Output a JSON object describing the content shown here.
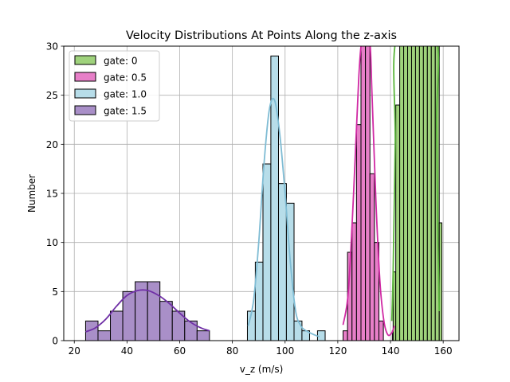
{
  "chart_data": {
    "type": "histogram",
    "title": "Velocity Distributions At Points Along the z-axis",
    "xlabel": "v_z (m/s)",
    "ylabel": "Number",
    "xlim": [
      16,
      166
    ],
    "ylim": [
      0,
      30
    ],
    "xticks": [
      20,
      40,
      60,
      80,
      100,
      120,
      140,
      160
    ],
    "yticks": [
      0,
      5,
      10,
      15,
      20,
      25,
      30
    ],
    "grid": true,
    "legend_position": "top-left",
    "series": [
      {
        "name": "gate: 0",
        "fill": "#9fd27c",
        "line": "#5ab53c",
        "bins": [
          {
            "x0": 141,
            "x1": 142,
            "y": 7
          },
          {
            "x0": 142,
            "x1": 143.5,
            "y": 24
          },
          {
            "x0": 143.5,
            "x1": 145,
            "y": 30
          },
          {
            "x0": 145,
            "x1": 146.5,
            "y": 30
          },
          {
            "x0": 146.5,
            "x1": 148,
            "y": 30
          },
          {
            "x0": 148,
            "x1": 149.5,
            "y": 30
          },
          {
            "x0": 149.5,
            "x1": 151,
            "y": 30
          },
          {
            "x0": 151,
            "x1": 152.5,
            "y": 30
          },
          {
            "x0": 152.5,
            "x1": 154,
            "y": 30
          },
          {
            "x0": 154,
            "x1": 155.5,
            "y": 30
          },
          {
            "x0": 155.5,
            "x1": 157,
            "y": 30
          },
          {
            "x0": 157,
            "x1": 158.5,
            "y": 30
          },
          {
            "x0": 158.5,
            "x1": 159.5,
            "y": 12
          }
        ],
        "kde": [
          [
            140.5,
            2
          ],
          [
            141,
            7
          ],
          [
            141.8,
            20
          ],
          [
            142.5,
            31
          ],
          [
            157,
            31
          ],
          [
            157.5,
            22
          ],
          [
            158,
            10
          ],
          [
            158.5,
            3
          ]
        ]
      },
      {
        "name": "gate: 0.5",
        "fill": "#e77fc8",
        "line": "#d02aa4",
        "bins": [
          {
            "x0": 122,
            "x1": 123.7,
            "y": 1
          },
          {
            "x0": 123.7,
            "x1": 125.4,
            "y": 9
          },
          {
            "x0": 125.4,
            "x1": 127.1,
            "y": 12
          },
          {
            "x0": 127.1,
            "x1": 128.8,
            "y": 22
          },
          {
            "x0": 128.8,
            "x1": 130.5,
            "y": 31
          },
          {
            "x0": 130.5,
            "x1": 132.2,
            "y": 31
          },
          {
            "x0": 132.2,
            "x1": 133.9,
            "y": 17
          },
          {
            "x0": 133.9,
            "x1": 135.6,
            "y": 10
          },
          {
            "x0": 135.6,
            "x1": 137.3,
            "y": 2
          },
          {
            "x0": 140.7,
            "x1": 142.4,
            "y": 1
          }
        ],
        "kde": [
          [
            122,
            1.6
          ],
          [
            124,
            5
          ],
          [
            126,
            15
          ],
          [
            128,
            27
          ],
          [
            129.5,
            31
          ],
          [
            132,
            31
          ],
          [
            133,
            25
          ],
          [
            134.5,
            14
          ],
          [
            136,
            6
          ],
          [
            137.5,
            2
          ],
          [
            139,
            0.6
          ],
          [
            140.5,
            0.8
          ],
          [
            141.5,
            1.5
          ]
        ]
      },
      {
        "name": "gate: 1.0",
        "fill": "#b7dde9",
        "line": "#7fbcd4",
        "bins": [
          {
            "x0": 85.7,
            "x1": 88.7,
            "y": 3
          },
          {
            "x0": 88.7,
            "x1": 91.6,
            "y": 8
          },
          {
            "x0": 91.6,
            "x1": 94.6,
            "y": 18
          },
          {
            "x0": 94.6,
            "x1": 97.5,
            "y": 29
          },
          {
            "x0": 97.5,
            "x1": 100.5,
            "y": 16
          },
          {
            "x0": 100.5,
            "x1": 103.4,
            "y": 14
          },
          {
            "x0": 103.4,
            "x1": 106.4,
            "y": 2
          },
          {
            "x0": 106.4,
            "x1": 109.3,
            "y": 1
          },
          {
            "x0": 112.3,
            "x1": 115.2,
            "y": 1
          }
        ],
        "kde": [
          [
            86,
            1.5
          ],
          [
            88,
            4
          ],
          [
            90,
            10
          ],
          [
            92,
            18
          ],
          [
            94,
            23.5
          ],
          [
            96,
            24.5
          ],
          [
            98,
            21
          ],
          [
            100,
            15
          ],
          [
            102,
            8
          ],
          [
            104,
            3
          ],
          [
            106,
            1.5
          ],
          [
            108,
            1
          ],
          [
            111,
            0.6
          ],
          [
            113,
            0.4
          ]
        ]
      },
      {
        "name": "gate: 1.5",
        "fill": "#a98fc8",
        "line": "#6f2fa6",
        "bins": [
          {
            "x0": 24.3,
            "x1": 29,
            "y": 2
          },
          {
            "x0": 29,
            "x1": 33.7,
            "y": 1
          },
          {
            "x0": 33.7,
            "x1": 38.4,
            "y": 3
          },
          {
            "x0": 38.4,
            "x1": 43.1,
            "y": 5
          },
          {
            "x0": 43.1,
            "x1": 47.8,
            "y": 6
          },
          {
            "x0": 47.8,
            "x1": 52.5,
            "y": 6
          },
          {
            "x0": 52.5,
            "x1": 57.2,
            "y": 4
          },
          {
            "x0": 57.2,
            "x1": 61.9,
            "y": 3
          },
          {
            "x0": 61.9,
            "x1": 66.6,
            "y": 2
          },
          {
            "x0": 66.6,
            "x1": 71.3,
            "y": 1
          }
        ],
        "kde": [
          [
            24.3,
            0.9
          ],
          [
            28,
            1.3
          ],
          [
            32,
            2.2
          ],
          [
            36,
            3.5
          ],
          [
            40,
            4.6
          ],
          [
            44,
            5.1
          ],
          [
            48,
            5.1
          ],
          [
            52,
            4.6
          ],
          [
            56,
            3.8
          ],
          [
            60,
            2.8
          ],
          [
            64,
            1.9
          ],
          [
            68,
            1.3
          ],
          [
            71.3,
            1.0
          ]
        ]
      }
    ]
  }
}
